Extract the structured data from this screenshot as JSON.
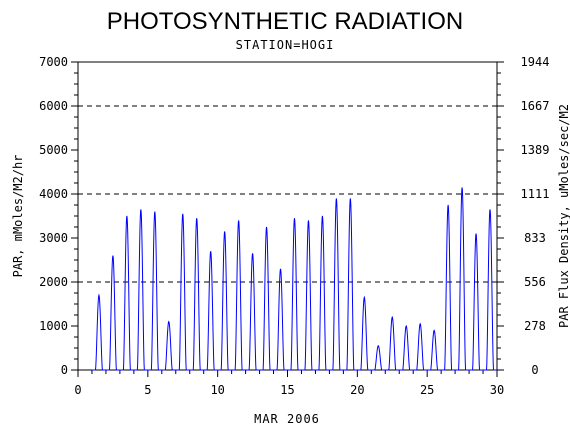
{
  "chart_data": {
    "type": "line",
    "title": "PHOTOSYNTHETIC RADIATION",
    "subtitle": "STATION=HOGI",
    "xlabel": "MAR 2006",
    "ylabel": "PAR, mMoles/M2/hr",
    "y2label": "PAR Flux Density, uMoles/sec/M2",
    "xlim": [
      0,
      30
    ],
    "ylim": [
      0,
      7000
    ],
    "x_ticks": [
      "0",
      "5",
      "10",
      "15",
      "20",
      "25",
      "30"
    ],
    "y_ticks": [
      "0",
      "1000",
      "2000",
      "3000",
      "4000",
      "5000",
      "6000",
      "7000"
    ],
    "y2_ticks": [
      "0",
      "278",
      "556",
      "833",
      "1111",
      "1389",
      "1667",
      "1944"
    ],
    "reference_lines": [
      2000,
      4000,
      6000
    ],
    "line_color": "#0000ff",
    "series": [
      {
        "daily_peaks": [
          {
            "day": 1,
            "peaks": [
              1700
            ]
          },
          {
            "day": 2,
            "peaks": [
              2600
            ]
          },
          {
            "day": 3,
            "peaks": [
              3500
            ]
          },
          {
            "day": 4,
            "peaks": [
              3650
            ]
          },
          {
            "day": 5,
            "peaks": [
              3600
            ]
          },
          {
            "day": 6,
            "peaks": [
              1100
            ]
          },
          {
            "day": 7,
            "peaks": [
              3550
            ]
          },
          {
            "day": 8,
            "peaks": [
              3450
            ]
          },
          {
            "day": 9,
            "peaks": [
              2700
            ]
          },
          {
            "day": 10,
            "peaks": [
              3150
            ]
          },
          {
            "day": 11,
            "peaks": [
              3400
            ]
          },
          {
            "day": 12,
            "peaks": [
              2650
            ]
          },
          {
            "day": 13,
            "peaks": [
              3250
            ]
          },
          {
            "day": 14,
            "peaks": [
              2300
            ]
          },
          {
            "day": 15,
            "peaks": [
              3450
            ]
          },
          {
            "day": 16,
            "peaks": [
              3400
            ]
          },
          {
            "day": 17,
            "peaks": [
              3500
            ]
          },
          {
            "day": 18,
            "peaks": [
              3900
            ]
          },
          {
            "day": 19,
            "peaks": [
              3900
            ]
          },
          {
            "day": 20,
            "peaks": [
              1650
            ]
          },
          {
            "day": 21,
            "peaks": [
              550
            ]
          },
          {
            "day": 22,
            "peaks": [
              1200
            ]
          },
          {
            "day": 23,
            "peaks": [
              1000
            ]
          },
          {
            "day": 24,
            "peaks": [
              1050
            ]
          },
          {
            "day": 25,
            "peaks": [
              900
            ]
          },
          {
            "day": 26,
            "peaks": [
              3750
            ]
          },
          {
            "day": 27,
            "peaks": [
              4150
            ]
          },
          {
            "day": 28,
            "peaks": [
              3100
            ]
          },
          {
            "day": 29,
            "peaks": [
              3650
            ]
          }
        ]
      }
    ]
  }
}
